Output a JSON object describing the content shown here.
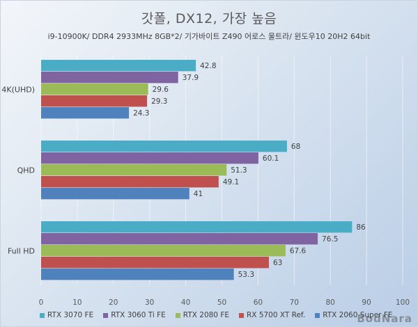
{
  "chart_data": {
    "type": "bar",
    "orientation": "horizontal",
    "title": "갓폴, DX12, 가장 높음",
    "subtitle": "i9-10900K/ DDR4 2933MHz 8GB*2/ 기가바이트 Z490 어로스 울트라/ 윈도우10 20H2 64bit",
    "xlabel": "",
    "ylabel": "",
    "xlim": [
      0,
      100
    ],
    "xticks": [
      0,
      10,
      20,
      30,
      40,
      50,
      60,
      70,
      80,
      90,
      100
    ],
    "grid": true,
    "legend_position": "bottom",
    "categories": [
      "4K(UHD)",
      "QHD",
      "Full HD"
    ],
    "series": [
      {
        "name": "RTX 3070 FE",
        "color": "#4BACC6",
        "values": [
          42.8,
          68,
          86
        ]
      },
      {
        "name": "RTX 3060 Ti FE",
        "color": "#8064A2",
        "values": [
          37.9,
          60.1,
          76.5
        ]
      },
      {
        "name": "RTX 2080 FE",
        "color": "#9BBB59",
        "values": [
          29.6,
          51.3,
          67.6
        ]
      },
      {
        "name": "RX 5700 XT Ref.",
        "color": "#C0504D",
        "values": [
          29.3,
          49.1,
          63
        ]
      },
      {
        "name": "RTX 2060 Super FE",
        "color": "#4F81BD",
        "values": [
          24.3,
          41,
          53.3
        ]
      }
    ]
  },
  "watermark": "BodNara"
}
